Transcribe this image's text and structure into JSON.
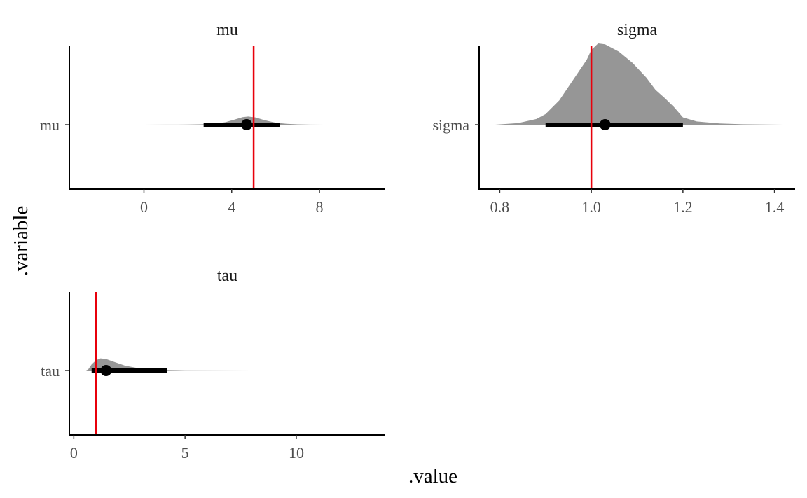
{
  "chart_data": {
    "type": "halfeye",
    "xlabel": ".value",
    "ylabel": ".variable",
    "reference_line_color": "#e8000b",
    "density_color": "#969696",
    "interval_color": "#000000",
    "panels": [
      {
        "title": "mu",
        "category_label": "mu",
        "xlim": [
          -3.4,
          11
        ],
        "ticks": [
          0,
          4,
          8
        ],
        "tick_labels": [
          "0",
          "4",
          "8"
        ],
        "reference_value": 5,
        "point_estimate": 4.68,
        "interval": [
          2.72,
          6.2
        ],
        "density_scale": 0.1,
        "density": [
          [
            0,
            0
          ],
          [
            1,
            0.005
          ],
          [
            2,
            0.02
          ],
          [
            2.7,
            0.05
          ],
          [
            3.2,
            0.12
          ],
          [
            3.7,
            0.3
          ],
          [
            4.1,
            0.6
          ],
          [
            4.5,
            0.93
          ],
          [
            4.75,
            1
          ],
          [
            5.1,
            0.88
          ],
          [
            5.5,
            0.55
          ],
          [
            6,
            0.25
          ],
          [
            6.5,
            0.1
          ],
          [
            7,
            0.04
          ],
          [
            7.6,
            0.012
          ],
          [
            8.2,
            0.003
          ],
          [
            9,
            0
          ]
        ]
      },
      {
        "title": "sigma",
        "category_label": "sigma",
        "xlim": [
          0.755,
          1.445
        ],
        "ticks": [
          0.8,
          1.0,
          1.2,
          1.4
        ],
        "tick_labels": [
          "0.8",
          "1.0",
          "1.2",
          "1.4"
        ],
        "reference_value": 1.0,
        "point_estimate": 1.03,
        "interval": [
          0.9,
          1.2
        ],
        "density_scale": 1.0,
        "density": [
          [
            0.79,
            0
          ],
          [
            0.84,
            0.02
          ],
          [
            0.88,
            0.07
          ],
          [
            0.9,
            0.13
          ],
          [
            0.93,
            0.3
          ],
          [
            0.96,
            0.55
          ],
          [
            0.99,
            0.8
          ],
          [
            1.0,
            0.92
          ],
          [
            1.015,
            1.0
          ],
          [
            1.03,
            0.99
          ],
          [
            1.06,
            0.9
          ],
          [
            1.09,
            0.76
          ],
          [
            1.12,
            0.58
          ],
          [
            1.14,
            0.43
          ],
          [
            1.16,
            0.33
          ],
          [
            1.18,
            0.22
          ],
          [
            1.2,
            0.09
          ],
          [
            1.23,
            0.04
          ],
          [
            1.28,
            0.015
          ],
          [
            1.33,
            0.005
          ],
          [
            1.42,
            0
          ]
        ]
      },
      {
        "title": "tau",
        "category_label": "tau",
        "xlim": [
          -0.2,
          14
        ],
        "ticks": [
          0,
          5,
          10
        ],
        "tick_labels": [
          "0",
          "5",
          "10"
        ],
        "reference_value": 1,
        "point_estimate": 1.45,
        "interval": [
          0.8,
          4.2
        ],
        "density_scale": 0.15,
        "density": [
          [
            0.55,
            0
          ],
          [
            0.65,
            0.1
          ],
          [
            0.8,
            0.5
          ],
          [
            1.0,
            0.85
          ],
          [
            1.2,
            1.0
          ],
          [
            1.45,
            0.95
          ],
          [
            1.8,
            0.72
          ],
          [
            2.3,
            0.4
          ],
          [
            3,
            0.16
          ],
          [
            4,
            0.05
          ],
          [
            5,
            0.015
          ],
          [
            6.5,
            0.004
          ],
          [
            8,
            0
          ]
        ]
      }
    ]
  }
}
